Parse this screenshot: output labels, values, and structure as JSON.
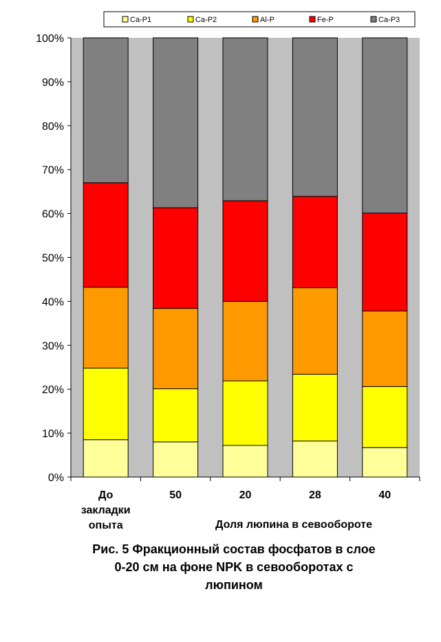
{
  "chart_data": {
    "type": "bar",
    "stacked": true,
    "percent_stacked": true,
    "categories": [
      [
        "До",
        "закладки",
        "опыта"
      ],
      [
        "50"
      ],
      [
        "20"
      ],
      [
        "28"
      ],
      [
        "40"
      ]
    ],
    "series": [
      {
        "name": "Ca-P1",
        "color": "#ffff99",
        "values": [
          8.5,
          8.0,
          7.2,
          8.2,
          6.7
        ]
      },
      {
        "name": "Ca-P2",
        "color": "#ffff00",
        "values": [
          16.3,
          12.1,
          14.7,
          15.2,
          13.9
        ]
      },
      {
        "name": "Al-P",
        "color": "#ff9900",
        "values": [
          18.4,
          18.3,
          18.1,
          19.7,
          17.2
        ]
      },
      {
        "name": "Fe-P",
        "color": "#ff0000",
        "values": [
          23.8,
          22.9,
          22.9,
          20.8,
          22.3
        ]
      },
      {
        "name": "Ca-P3",
        "color": "#808080",
        "values": [
          33.0,
          38.7,
          37.1,
          36.1,
          39.9
        ]
      }
    ],
    "y_ticks": [
      "0%",
      "10%",
      "20%",
      "30%",
      "40%",
      "50%",
      "60%",
      "70%",
      "80%",
      "90%",
      "100%"
    ],
    "ylim": [
      0,
      100
    ],
    "xlabel": "Доля люпина в севообороте",
    "ylabel": "",
    "legend_position": "top",
    "plot_background": "#c0c0c0"
  },
  "caption_lines": [
    "Рис. 5 Фракционный состав фосфатов в слое",
    "0-20 см на фоне NPK в севооборотах с",
    "люпином"
  ]
}
